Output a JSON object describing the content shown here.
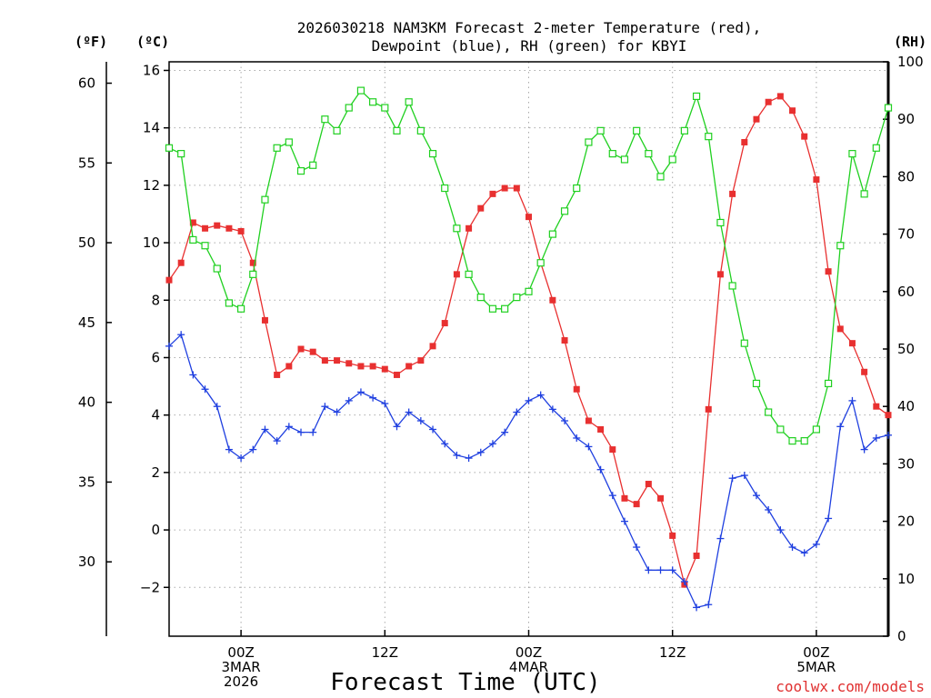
{
  "chart_data": {
    "type": "line",
    "title_line1": "2026030218 NAM3KM Forecast 2-meter Temperature (red),",
    "title_line2": "Dewpoint (blue), RH (green) for KBYI",
    "xlabel": "Forecast Time (UTC)",
    "unit_f": "(ºF)",
    "unit_c": "(ºC)",
    "unit_rh": "(RH)",
    "credit": "coolwx.com/models",
    "grid": true,
    "x_start_forecast_hour": 18,
    "x_end_forecast_hour": 78,
    "x_ticks": [
      {
        "hour": 24,
        "line1": "00Z",
        "line2": "3MAR",
        "line3": "2026"
      },
      {
        "hour": 36,
        "line1": "12Z",
        "line2": "",
        "line3": ""
      },
      {
        "hour": 48,
        "line1": "00Z",
        "line2": "4MAR",
        "line3": ""
      },
      {
        "hour": 60,
        "line1": "12Z",
        "line2": "",
        "line3": ""
      },
      {
        "hour": 72,
        "line1": "00Z",
        "line2": "5MAR",
        "line3": ""
      }
    ],
    "y_celsius": {
      "min": -3.7,
      "max": 16.3,
      "ticks": [
        -2,
        0,
        2,
        4,
        6,
        8,
        10,
        12,
        14,
        16
      ]
    },
    "y_fahrenheit": {
      "ticks": [
        30,
        35,
        40,
        45,
        50,
        55,
        60
      ]
    },
    "y_rh": {
      "min": 0,
      "max": 100,
      "ticks": [
        0,
        10,
        20,
        30,
        40,
        50,
        60,
        70,
        80,
        90,
        100
      ]
    },
    "series": [
      {
        "name": "Temperature",
        "axis": "celsius",
        "color": "#e83030",
        "marker": "filled-square",
        "x": [
          18,
          19,
          20,
          21,
          22,
          23,
          24,
          25,
          26,
          27,
          28,
          29,
          30,
          31,
          32,
          33,
          34,
          35,
          36,
          37,
          38,
          39,
          40,
          41,
          42,
          43,
          44,
          45,
          46,
          47,
          48,
          49,
          50,
          51,
          52,
          53,
          54,
          55,
          56,
          57,
          58,
          59,
          60,
          61,
          62,
          63,
          64,
          65,
          66,
          67,
          68,
          69,
          70,
          71,
          72,
          73,
          74,
          75,
          76,
          77,
          78
        ],
        "values": [
          8.7,
          9.3,
          10.7,
          10.5,
          10.6,
          10.5,
          10.4,
          9.3,
          7.3,
          5.4,
          5.7,
          6.3,
          6.2,
          5.9,
          5.9,
          5.8,
          5.7,
          5.7,
          5.6,
          5.4,
          5.7,
          5.9,
          6.4,
          7.2,
          8.9,
          10.5,
          11.2,
          11.7,
          11.9,
          11.9,
          10.9,
          9.3,
          8.0,
          6.6,
          4.9,
          3.8,
          3.5,
          2.8,
          1.1,
          0.9,
          1.6,
          1.1,
          -0.2,
          -1.9,
          -0.9,
          4.2,
          8.9,
          11.7,
          13.5,
          14.3,
          14.9,
          15.1,
          14.6,
          13.7,
          12.2,
          9.0,
          7.0,
          6.5,
          5.5,
          4.3,
          4.0
        ]
      },
      {
        "name": "Dewpoint",
        "axis": "celsius",
        "color": "#2040e0",
        "marker": "plus",
        "x": [
          18,
          19,
          20,
          21,
          22,
          23,
          24,
          25,
          26,
          27,
          28,
          29,
          30,
          31,
          32,
          33,
          34,
          35,
          36,
          37,
          38,
          39,
          40,
          41,
          42,
          43,
          44,
          45,
          46,
          47,
          48,
          49,
          50,
          51,
          52,
          53,
          54,
          55,
          56,
          57,
          58,
          59,
          60,
          61,
          62,
          63,
          64,
          65,
          66,
          67,
          68,
          69,
          70,
          71,
          72,
          73,
          74,
          75,
          76,
          77,
          78
        ],
        "values": [
          6.4,
          6.8,
          5.4,
          4.9,
          4.3,
          2.8,
          2.5,
          2.8,
          3.5,
          3.1,
          3.6,
          3.4,
          3.4,
          4.3,
          4.1,
          4.5,
          4.8,
          4.6,
          4.4,
          3.6,
          4.1,
          3.8,
          3.5,
          3.0,
          2.6,
          2.5,
          2.7,
          3.0,
          3.4,
          4.1,
          4.5,
          4.7,
          4.2,
          3.8,
          3.2,
          2.9,
          2.1,
          1.2,
          0.3,
          -0.6,
          -1.4,
          -1.4,
          -1.4,
          -1.8,
          -2.7,
          -2.6,
          -0.3,
          1.8,
          1.9,
          1.2,
          0.7,
          0.0,
          -0.6,
          -0.8,
          -0.5,
          0.4,
          3.6,
          4.5,
          2.8,
          3.2,
          3.3
        ]
      },
      {
        "name": "RH",
        "axis": "rh",
        "color": "#20d020",
        "marker": "open-square",
        "x": [
          18,
          19,
          20,
          21,
          22,
          23,
          24,
          25,
          26,
          27,
          28,
          29,
          30,
          31,
          32,
          33,
          34,
          35,
          36,
          37,
          38,
          39,
          40,
          41,
          42,
          43,
          44,
          45,
          46,
          47,
          48,
          49,
          50,
          51,
          52,
          53,
          54,
          55,
          56,
          57,
          58,
          59,
          60,
          61,
          62,
          63,
          64,
          65,
          66,
          67,
          68,
          69,
          70,
          71,
          72,
          73,
          74,
          75,
          76,
          77,
          78
        ],
        "values": [
          85,
          84,
          69,
          68,
          64,
          58,
          57,
          63,
          76,
          85,
          86,
          81,
          82,
          90,
          88,
          92,
          95,
          93,
          92,
          88,
          93,
          88,
          84,
          78,
          71,
          63,
          59,
          57,
          57,
          59,
          60,
          65,
          70,
          74,
          78,
          86,
          88,
          84,
          83,
          88,
          84,
          80,
          83,
          88,
          94,
          87,
          72,
          61,
          51,
          44,
          39,
          36,
          34,
          34,
          36,
          44,
          68,
          84,
          77,
          85,
          92
        ]
      }
    ]
  }
}
